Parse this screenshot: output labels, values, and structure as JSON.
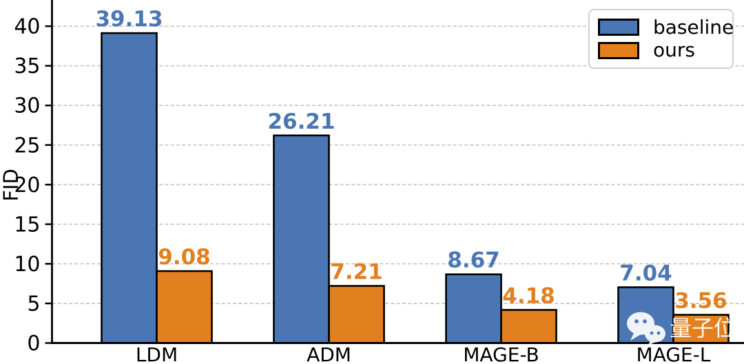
{
  "watermark": {
    "text": "量子位",
    "icon": "wechat-icon"
  },
  "legend": {
    "items": [
      {
        "label": "baseline",
        "color": "#4a77b4"
      },
      {
        "label": "ours",
        "color": "#e2801f"
      }
    ]
  },
  "chart_data": {
    "type": "bar",
    "title": "",
    "categories": [
      "LDM",
      "ADM",
      "MAGE-B",
      "MAGE-L"
    ],
    "series": [
      {
        "name": "baseline",
        "color": "#4a77b4",
        "values": [
          39.13,
          26.21,
          8.67,
          7.04
        ]
      },
      {
        "name": "ours",
        "color": "#e2801f",
        "values": [
          9.08,
          7.21,
          4.18,
          3.56
        ]
      }
    ],
    "xlabel": "",
    "ylabel": "FID",
    "yticks": [
      0,
      5,
      10,
      15,
      20,
      25,
      30,
      35,
      40
    ],
    "ylim": [
      0,
      43.3
    ],
    "grid": "dashed-horizontal",
    "grid_color": "#c9c9c9",
    "axis_color": "#000000",
    "bar_edge_color": "#000000",
    "legend_position": "upper-right",
    "bar_value_labels": true
  }
}
